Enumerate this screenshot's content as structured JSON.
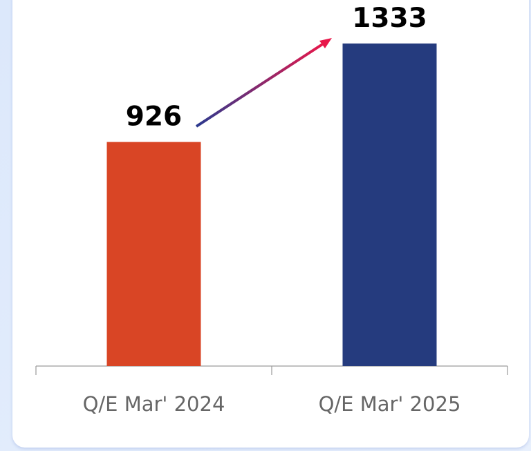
{
  "chart_data": {
    "type": "bar",
    "categories": [
      "Q/E Mar' 2024",
      "Q/E Mar' 2025"
    ],
    "values": [
      926,
      1333
    ],
    "colors": [
      "#d94525",
      "#253b7e"
    ]
  }
}
